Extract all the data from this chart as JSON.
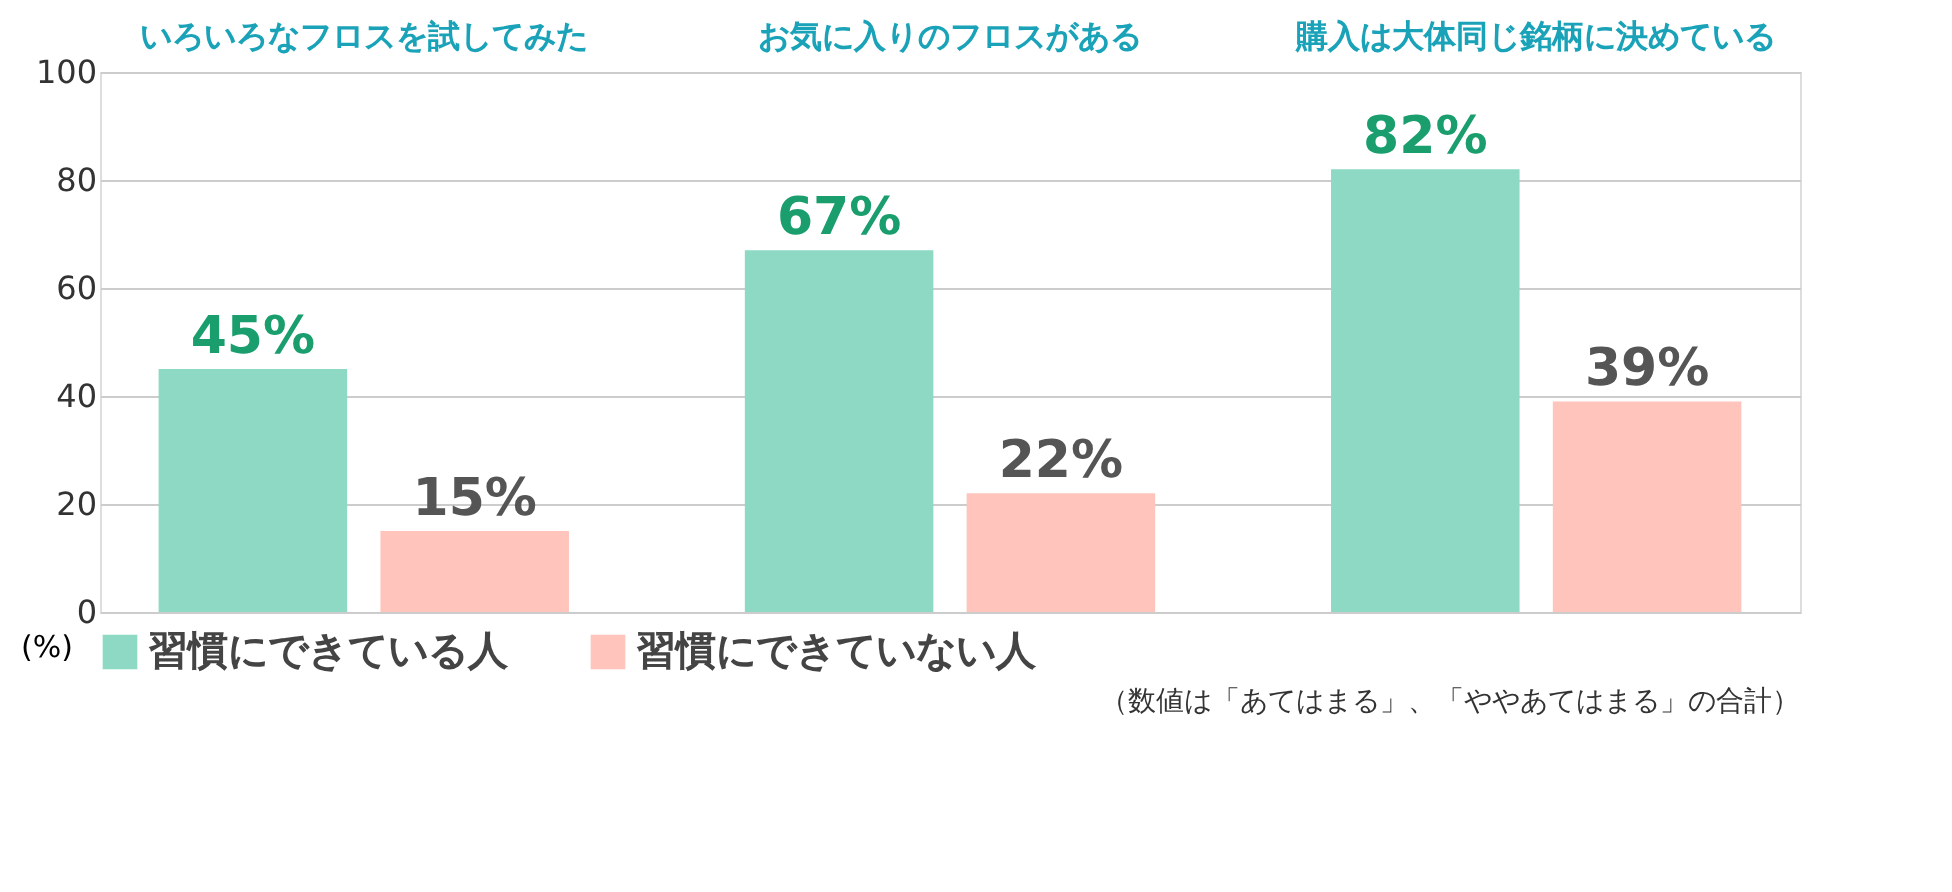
{
  "chart_data": {
    "type": "bar",
    "categories": [
      "いろいろなフロスを試してみた",
      "お気に入りのフロスがある",
      "購入は大体同じ銘柄に決めている"
    ],
    "series": [
      {
        "name": "習慣にできている人",
        "color": "#8dd9c4",
        "values": [
          45,
          67,
          82
        ],
        "value_labels": [
          "45%",
          "67%",
          "82%"
        ]
      },
      {
        "name": "習慣にできていない人",
        "color": "#ffc4bb",
        "values": [
          15,
          22,
          39
        ],
        "value_labels": [
          "15%",
          "22%",
          "39%"
        ]
      }
    ],
    "ylabel": "(%)",
    "ylim": [
      0,
      100
    ],
    "yticks": [
      0,
      20,
      40,
      60,
      80,
      100
    ],
    "grid": "y",
    "legend": "bottom",
    "annotations": [
      "（数値は「あてはまる」、「ややあてはまる」の合計）"
    ]
  }
}
